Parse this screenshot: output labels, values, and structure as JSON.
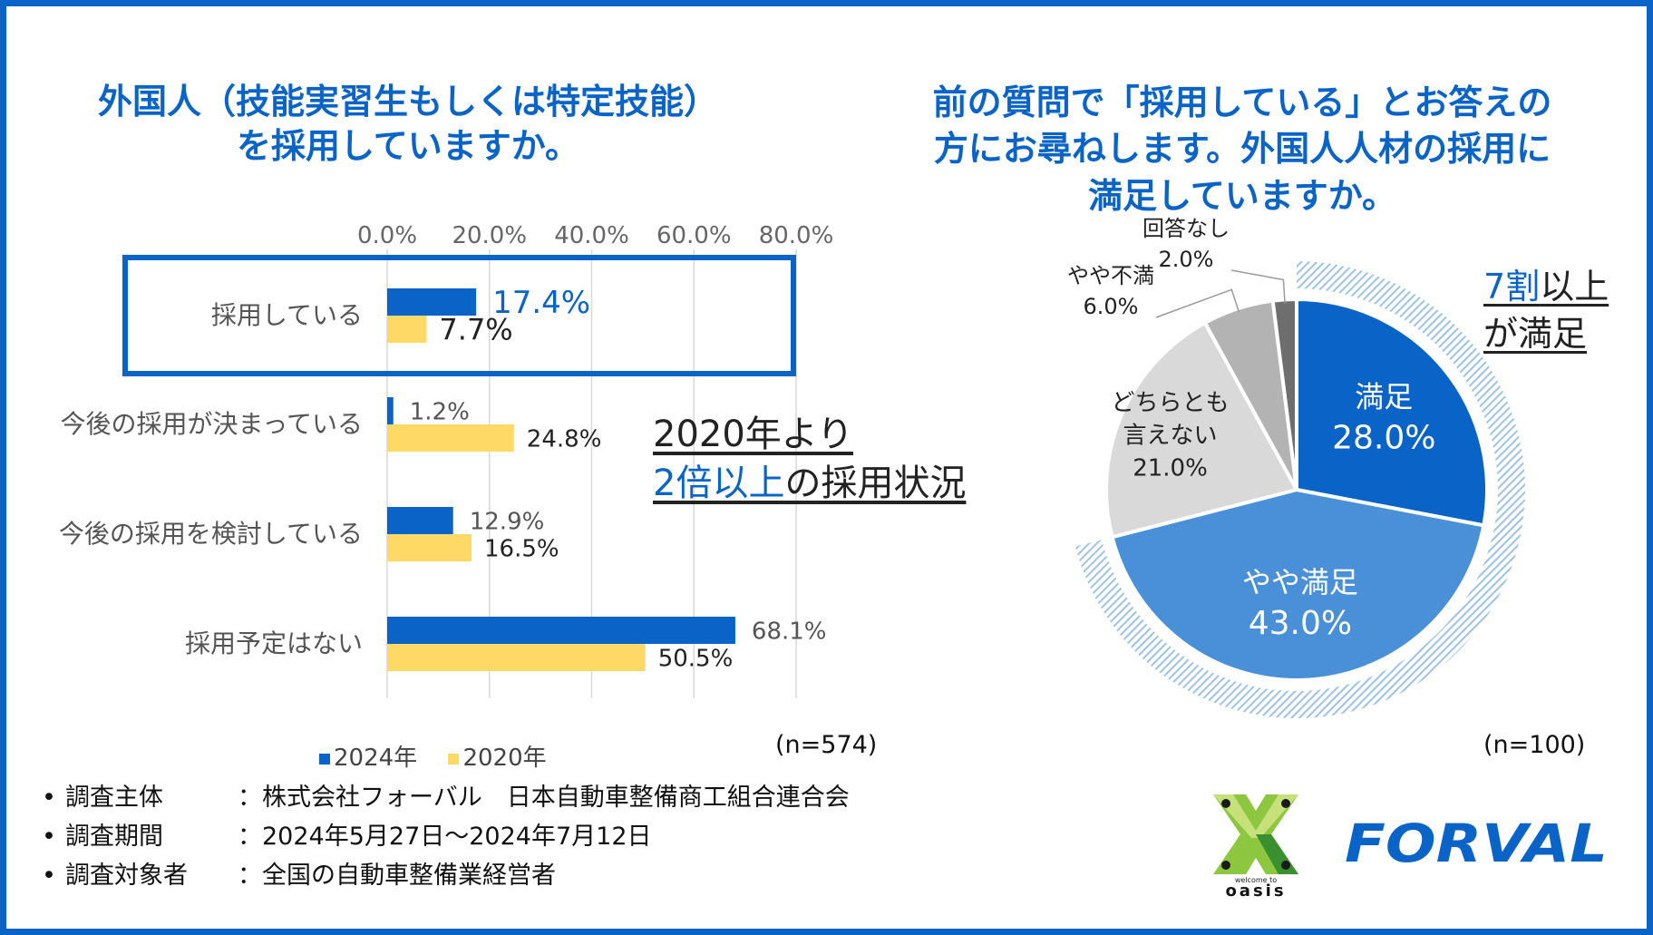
{
  "left_title": {
    "line1": "外国人（技能実習生もしくは特定技能）",
    "line2": "を採用していますか。"
  },
  "right_title": {
    "line1": "前の質問で「採用している」とお答えの",
    "line2": "方にお尋ねします。外国人人材の採用に",
    "line3": "満足していますか。"
  },
  "callout_left": {
    "part1": "2020年より",
    "part2_highlight": "2倍以上",
    "part2_rest": "の採用状況"
  },
  "callout_right": {
    "highlight": "7割",
    "rest1": "以上",
    "line2": "が満足"
  },
  "n_left": "(n=574)",
  "n_right": "(n=100)",
  "legend": {
    "items": [
      {
        "label": "2024年",
        "color": "#0a64c8"
      },
      {
        "label": "2020年",
        "color": "#ffd966"
      }
    ]
  },
  "notes": [
    {
      "bullet": "•",
      "key": "調査主体",
      "value": "：株式会社フォーバル　日本自動車整備商工組合連合会"
    },
    {
      "bullet": "•",
      "key": "調査期間",
      "value": "：2024年5月27日～2024年7月12日"
    },
    {
      "bullet": "•",
      "key": "調査対象者",
      "value": "：全国の自動車整備業経営者"
    }
  ],
  "logos": {
    "oasis_small": "welcome to",
    "oasis": "oasis",
    "forval": "FORVAL"
  },
  "chart_data": [
    {
      "type": "bar",
      "orientation": "horizontal",
      "categories": [
        "採用している",
        "今後の採用が決まっている",
        "今後の採用を検討している",
        "採用予定はない"
      ],
      "series": [
        {
          "name": "2024年",
          "color": "#0a64c8",
          "values": [
            17.4,
            1.2,
            12.9,
            68.1
          ],
          "labels": [
            "17.4%",
            "1.2%",
            "12.9%",
            "68.1%"
          ]
        },
        {
          "name": "2020年",
          "color": "#ffd966",
          "values": [
            7.7,
            24.8,
            16.5,
            50.5
          ],
          "labels": [
            "7.7%",
            "24.8%",
            "16.5%",
            "50.5%"
          ]
        }
      ],
      "xlim": [
        0,
        80
      ],
      "ticks": [
        0,
        20,
        40,
        60,
        80
      ],
      "tick_labels": [
        "0.0%",
        "20.0%",
        "40.0%",
        "60.0%",
        "80.0%"
      ],
      "grid": true,
      "legend": "bottom",
      "highlighted_category": "採用している"
    },
    {
      "type": "pie",
      "style": "donut-offset",
      "slices": [
        {
          "label": "満足",
          "value": 28.0,
          "value_label": "28.0%",
          "color": "#0a64c8",
          "text_color": "#ffffff",
          "label_inside": true
        },
        {
          "label": "やや満足",
          "value": 43.0,
          "value_label": "43.0%",
          "color": "#4a90d9",
          "text_color": "#ffffff",
          "label_inside": true
        },
        {
          "label": "どちらとも言えない",
          "label_lines": [
            "どちらとも",
            "言えない"
          ],
          "value": 21.0,
          "value_label": "21.0%",
          "color": "#d9d9d9",
          "text_color": "#222222",
          "label_inside": true
        },
        {
          "label": "やや不満",
          "value": 6.0,
          "value_label": "6.0%",
          "color": "#b3b3b3",
          "text_color": "#222222",
          "label_inside": false
        },
        {
          "label": "回答なし",
          "value": 2.0,
          "value_label": "2.0%",
          "color": "#6e6e6e",
          "text_color": "#222222",
          "label_inside": false
        }
      ],
      "highlight_ring_color": "#9ec3e8"
    }
  ]
}
